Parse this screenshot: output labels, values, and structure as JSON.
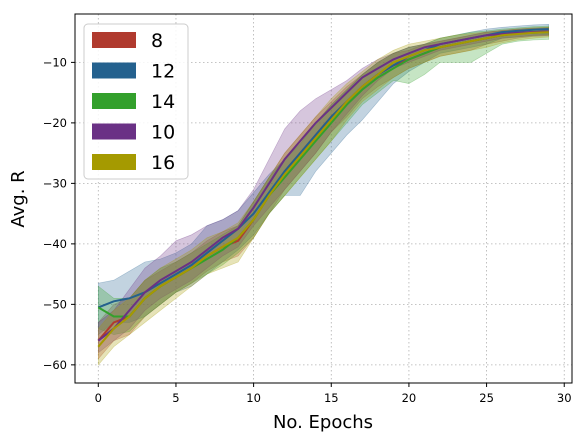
{
  "chart_data": {
    "type": "line",
    "xlabel": "No. Epochs",
    "ylabel": "Avg. R",
    "xlim": [
      -1.5,
      30.5
    ],
    "ylim": [
      -63,
      -2
    ],
    "xticks": [
      0,
      5,
      10,
      15,
      20,
      25,
      30
    ],
    "yticks": [
      -60,
      -50,
      -40,
      -30,
      -20,
      -10
    ],
    "grid": true,
    "legend_position": "top-left",
    "x": [
      0,
      1,
      2,
      3,
      4,
      5,
      6,
      7,
      8,
      9,
      10,
      11,
      12,
      13,
      14,
      15,
      16,
      17,
      18,
      19,
      20,
      21,
      22,
      23,
      24,
      25,
      26,
      27,
      28,
      29
    ],
    "series": [
      {
        "name": "8",
        "color": "#b03a2e",
        "mean": [
          -56,
          -53,
          -52,
          -49,
          -47,
          -45.5,
          -44,
          -42,
          -40.5,
          -39.5,
          -36,
          -32,
          -28,
          -25,
          -22,
          -19,
          -16.5,
          -14,
          -12,
          -10.5,
          -9.5,
          -8.5,
          -7.5,
          -7,
          -6.5,
          -6,
          -5.5,
          -5.2,
          -5,
          -4.9
        ],
        "upper": [
          -53,
          -50,
          -49,
          -46,
          -44.5,
          -43,
          -41.5,
          -39.5,
          -38,
          -37,
          -33,
          -29,
          -25,
          -22,
          -19,
          -16.5,
          -14,
          -12,
          -10,
          -8.5,
          -8,
          -7,
          -6.5,
          -6,
          -5.5,
          -5,
          -4.8,
          -4.5,
          -4.3,
          -4.2
        ],
        "lower": [
          -59,
          -56,
          -55,
          -52,
          -50,
          -48,
          -46.5,
          -44.5,
          -43,
          -42,
          -39,
          -35,
          -31,
          -28,
          -25,
          -21.5,
          -19,
          -16,
          -14,
          -12.5,
          -11,
          -10,
          -9,
          -8.5,
          -8,
          -7,
          -6.5,
          -6,
          -5.7,
          -5.6
        ]
      },
      {
        "name": "12",
        "color": "#24618e",
        "mean": [
          -50.5,
          -49.5,
          -49,
          -48,
          -46.5,
          -45,
          -43.5,
          -41.5,
          -39.5,
          -37.5,
          -35,
          -31.5,
          -28,
          -25,
          -22,
          -19,
          -16.5,
          -14,
          -12,
          -10.5,
          -9,
          -8,
          -7,
          -6.5,
          -6,
          -5.5,
          -5,
          -4.8,
          -4.6,
          -4.5
        ],
        "upper": [
          -46.5,
          -46,
          -44.5,
          -43,
          -42.5,
          -41.5,
          -40,
          -37,
          -36,
          -34.5,
          -31.5,
          -28.5,
          -26,
          -23.5,
          -20,
          -17,
          -14.5,
          -12,
          -10,
          -8.5,
          -7.5,
          -7,
          -6,
          -5.5,
          -5,
          -4.5,
          -4.2,
          -4,
          -3.8,
          -3.7
        ],
        "lower": [
          -55,
          -53,
          -53,
          -52,
          -50,
          -48,
          -47,
          -45,
          -43,
          -41,
          -38.5,
          -35,
          -32,
          -32,
          -28,
          -25,
          -22,
          -19.5,
          -16.5,
          -13.5,
          -11.5,
          -10,
          -8.5,
          -8,
          -7.5,
          -7,
          -6,
          -5.8,
          -5.5,
          -5.4
        ]
      },
      {
        "name": "14",
        "color": "#33a02c",
        "mean": [
          -50.5,
          -52,
          -52,
          -49,
          -47,
          -45.5,
          -44,
          -42.5,
          -41,
          -39,
          -36,
          -32,
          -29,
          -26,
          -23,
          -20,
          -17,
          -14.5,
          -12.5,
          -11,
          -9.5,
          -8.5,
          -7.5,
          -7,
          -6.5,
          -6,
          -5.5,
          -5.2,
          -5.1,
          -5
        ],
        "upper": [
          -47,
          -49,
          -49,
          -46,
          -44,
          -43,
          -41.5,
          -40,
          -38.5,
          -37,
          -33,
          -29,
          -26,
          -23,
          -20,
          -17,
          -14.5,
          -12,
          -10,
          -8.5,
          -7.5,
          -7,
          -6,
          -5.5,
          -5,
          -4.8,
          -4.5,
          -4.3,
          -4.1,
          -4
        ],
        "lower": [
          -54,
          -55,
          -54.5,
          -52,
          -50,
          -48,
          -46.5,
          -45,
          -43.5,
          -41.5,
          -39,
          -35,
          -32,
          -29,
          -26,
          -23,
          -20,
          -17,
          -15,
          -13,
          -13.5,
          -12,
          -10,
          -10,
          -10,
          -8.5,
          -7,
          -6.5,
          -6.3,
          -6.2
        ]
      },
      {
        "name": "10",
        "color": "#6a3185",
        "mean": [
          -56,
          -54,
          -51,
          -48,
          -46,
          -44.5,
          -43,
          -41,
          -39,
          -37.5,
          -34,
          -30,
          -26,
          -23,
          -20,
          -17.5,
          -15,
          -12.5,
          -11,
          -9.5,
          -8.5,
          -7.5,
          -7,
          -6.5,
          -6,
          -5.5,
          -5.3,
          -5.1,
          -5,
          -4.9
        ],
        "upper": [
          -53,
          -51,
          -47.5,
          -44,
          -42,
          -39.5,
          -38.5,
          -37,
          -36,
          -34.5,
          -31,
          -26,
          -21,
          -18,
          -16,
          -14.5,
          -13,
          -11,
          -9.5,
          -8.5,
          -7.5,
          -7,
          -6.5,
          -6,
          -5.5,
          -5,
          -4.7,
          -4.5,
          -4.4,
          -4.3
        ],
        "lower": [
          -58,
          -56,
          -54,
          -51,
          -49,
          -47.5,
          -46,
          -44,
          -42,
          -40.5,
          -37,
          -34,
          -31,
          -28,
          -25,
          -21.5,
          -18.5,
          -15.5,
          -13,
          -11,
          -10,
          -9,
          -8,
          -7.5,
          -7,
          -6.5,
          -6,
          -5.8,
          -5.6,
          -5.5
        ]
      },
      {
        "name": "16",
        "color": "#a59a00",
        "mean": [
          -57,
          -54,
          -52,
          -49,
          -47,
          -45.5,
          -44,
          -42,
          -40.5,
          -39,
          -36,
          -32,
          -28.5,
          -25.5,
          -22.5,
          -19.5,
          -16.5,
          -14,
          -12,
          -10,
          -9,
          -8,
          -7.5,
          -7,
          -6.5,
          -6,
          -5.5,
          -5.3,
          -5.1,
          -5
        ],
        "upper": [
          -54,
          -51,
          -49,
          -46,
          -44,
          -42.5,
          -41,
          -39,
          -38,
          -36.5,
          -33,
          -29,
          -25,
          -22,
          -19,
          -16,
          -13.5,
          -11.5,
          -9.5,
          -8,
          -7,
          -6.5,
          -6,
          -5.5,
          -5.2,
          -5,
          -4.7,
          -4.5,
          -4.3,
          -4.2
        ],
        "lower": [
          -60,
          -57,
          -55,
          -53,
          -51,
          -49,
          -47,
          -45,
          -44,
          -43,
          -39,
          -35,
          -32,
          -29,
          -26,
          -23,
          -19.5,
          -16.5,
          -14.5,
          -12.5,
          -11,
          -10,
          -9,
          -8.5,
          -8,
          -7.5,
          -6.8,
          -6.3,
          -6,
          -5.8
        ]
      }
    ]
  }
}
